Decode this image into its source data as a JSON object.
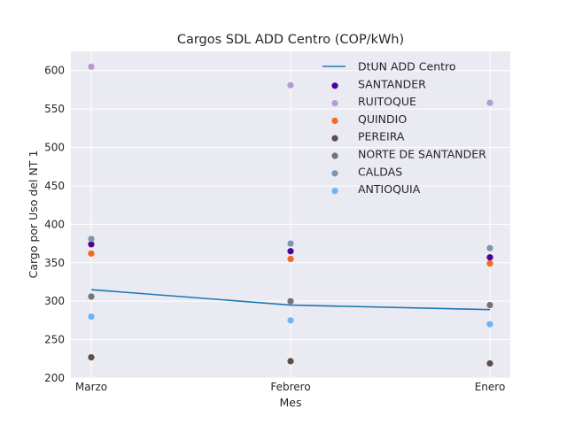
{
  "chart_data": {
    "type": "line",
    "title": "Cargos SDL ADD Centro (COP/kWh)",
    "xlabel": "Mes",
    "ylabel": "Cargo por Uso del NT 1",
    "categories": [
      "Marzo",
      "Febrero",
      "Enero"
    ],
    "ylim": [
      200,
      625
    ],
    "yticks": [
      200,
      250,
      300,
      350,
      400,
      450,
      500,
      550,
      600
    ],
    "grid": true,
    "legend_position": "top-right",
    "line_series": {
      "name": "DtUN ADD Centro",
      "color": "#1f77b4",
      "values": [
        315,
        295,
        289
      ]
    },
    "series": [
      {
        "name": "SANTANDER",
        "color": "#4b0096",
        "values": [
          374,
          365,
          357
        ]
      },
      {
        "name": "RUITOQUE",
        "color": "#b69ad2",
        "values": [
          605,
          581,
          558
        ]
      },
      {
        "name": "QUINDIO",
        "color": "#f36b21",
        "values": [
          362,
          355,
          349
        ]
      },
      {
        "name": "PEREIRA",
        "color": "#5e4d49",
        "values": [
          227,
          222,
          219
        ]
      },
      {
        "name": "NORTE DE SANTANDER",
        "color": "#737373",
        "values": [
          306,
          300,
          295
        ]
      },
      {
        "name": "CALDAS",
        "color": "#7f96af",
        "values": [
          381,
          375,
          369
        ]
      },
      {
        "name": "ANTIOQUIA",
        "color": "#6eb4f5",
        "values": [
          280,
          275,
          270
        ]
      }
    ]
  }
}
